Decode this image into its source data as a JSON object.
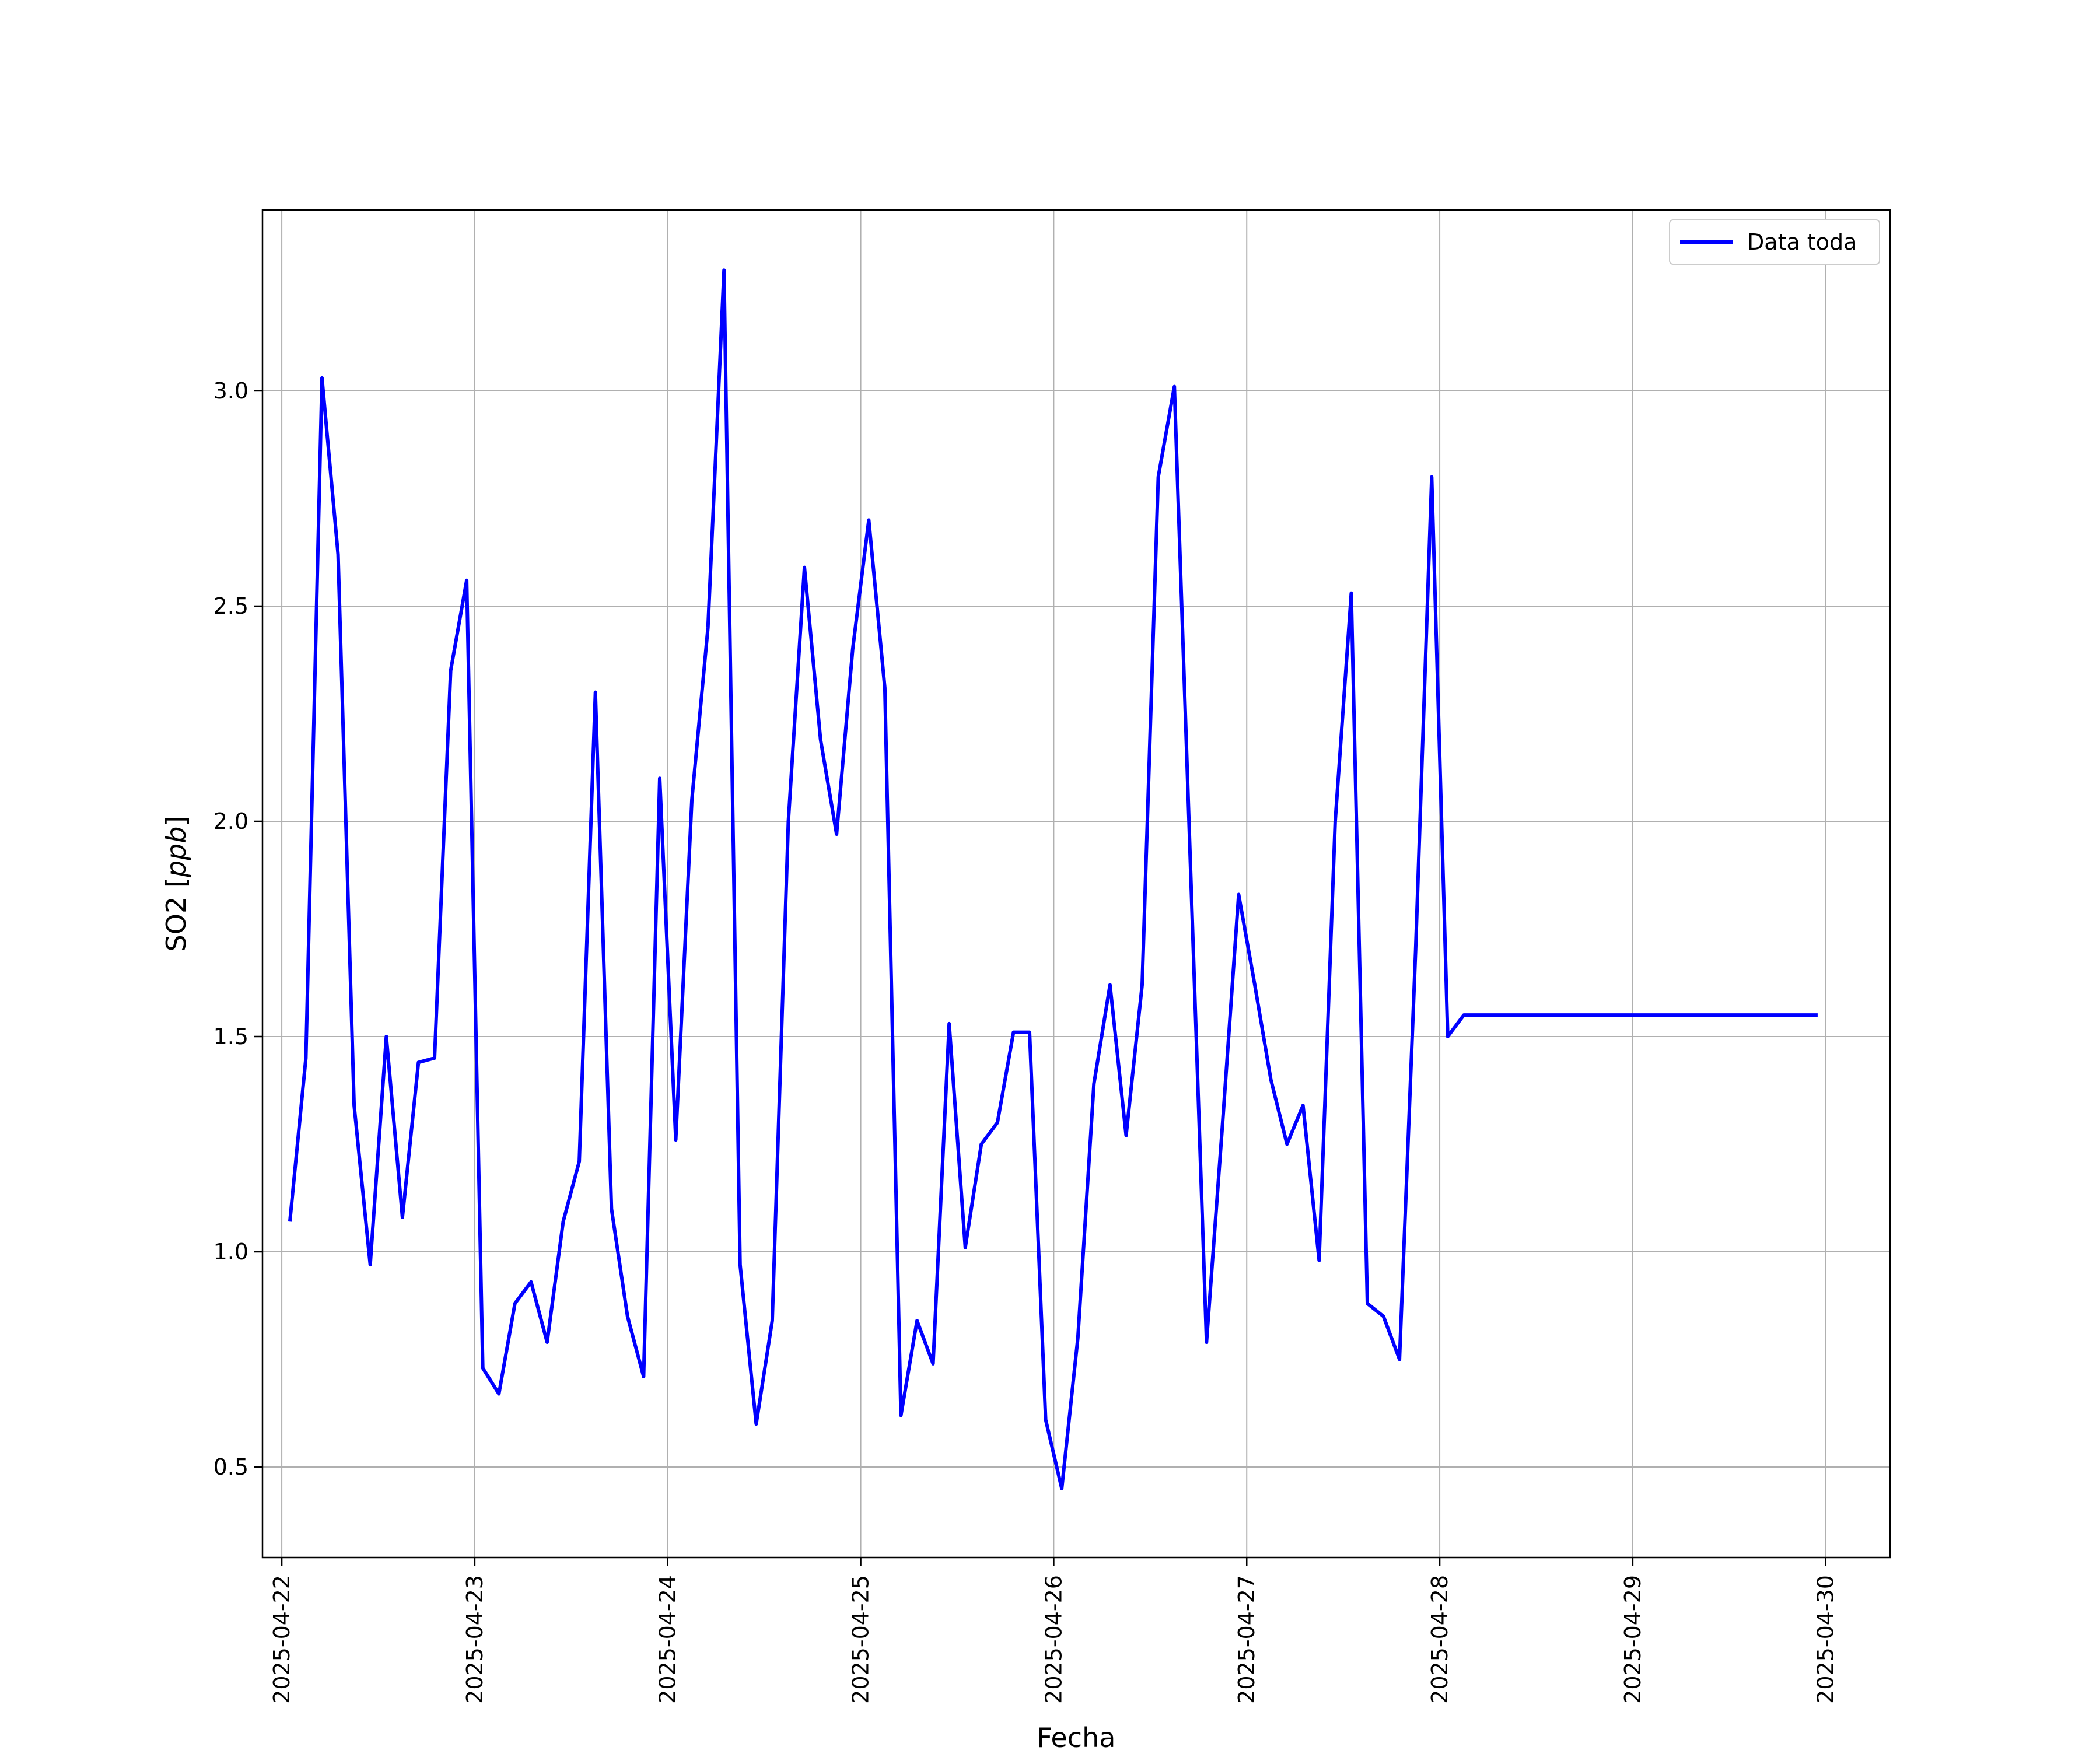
{
  "chart_data": {
    "type": "line",
    "title": "",
    "xlabel": "Fecha",
    "ylabel_main": "SO2 [",
    "ylabel_unit": "ppb",
    "ylabel_end": "]",
    "xlim": [
      "2025-04-21T21:36",
      "2025-04-30T08:00"
    ],
    "ylim": [
      0.29,
      3.42
    ],
    "x_ticks": [
      "2025-04-22",
      "2025-04-23",
      "2025-04-24",
      "2025-04-25",
      "2025-04-26",
      "2025-04-27",
      "2025-04-28",
      "2025-04-29",
      "2025-04-30"
    ],
    "y_ticks": [
      "0.5",
      "1.0",
      "1.5",
      "2.0",
      "2.5",
      "3.0"
    ],
    "grid": true,
    "legend": "top-right",
    "color": "#0000ff",
    "series": [
      {
        "name": "Data toda",
        "x": [
          "2025-04-22T01:00",
          "2025-04-22T03:00",
          "2025-04-22T05:00",
          "2025-04-22T07:00",
          "2025-04-22T09:00",
          "2025-04-22T11:00",
          "2025-04-22T13:00",
          "2025-04-22T15:00",
          "2025-04-22T17:00",
          "2025-04-22T19:00",
          "2025-04-22T21:00",
          "2025-04-22T23:00",
          "2025-04-23T01:00",
          "2025-04-23T03:00",
          "2025-04-23T05:00",
          "2025-04-23T07:00",
          "2025-04-23T09:00",
          "2025-04-23T11:00",
          "2025-04-23T13:00",
          "2025-04-23T15:00",
          "2025-04-23T17:00",
          "2025-04-23T19:00",
          "2025-04-23T21:00",
          "2025-04-23T23:00",
          "2025-04-24T01:00",
          "2025-04-24T03:00",
          "2025-04-24T05:00",
          "2025-04-24T07:00",
          "2025-04-24T09:00",
          "2025-04-24T11:00",
          "2025-04-24T13:00",
          "2025-04-24T15:00",
          "2025-04-24T17:00",
          "2025-04-24T19:00",
          "2025-04-24T21:00",
          "2025-04-24T23:00",
          "2025-04-25T01:00",
          "2025-04-25T03:00",
          "2025-04-25T05:00",
          "2025-04-25T07:00",
          "2025-04-25T09:00",
          "2025-04-25T11:00",
          "2025-04-25T13:00",
          "2025-04-25T15:00",
          "2025-04-25T17:00",
          "2025-04-25T19:00",
          "2025-04-25T21:00",
          "2025-04-25T23:00",
          "2025-04-26T01:00",
          "2025-04-26T03:00",
          "2025-04-26T05:00",
          "2025-04-26T07:00",
          "2025-04-26T09:00",
          "2025-04-26T11:00",
          "2025-04-26T13:00",
          "2025-04-26T15:00",
          "2025-04-26T17:00",
          "2025-04-26T19:00",
          "2025-04-26T21:00",
          "2025-04-26T23:00",
          "2025-04-27T01:00",
          "2025-04-27T03:00",
          "2025-04-27T05:00",
          "2025-04-27T07:00",
          "2025-04-27T09:00",
          "2025-04-27T11:00",
          "2025-04-27T13:00",
          "2025-04-27T15:00",
          "2025-04-27T17:00",
          "2025-04-27T19:00",
          "2025-04-27T21:00",
          "2025-04-27T23:00",
          "2025-04-28T01:00",
          "2025-04-28T03:00",
          "2025-04-28T05:00",
          "2025-04-28T07:00",
          "2025-04-28T09:00",
          "2025-04-28T11:00",
          "2025-04-28T13:00",
          "2025-04-28T15:00",
          "2025-04-28T17:00",
          "2025-04-28T19:00",
          "2025-04-28T21:00",
          "2025-04-28T23:00",
          "2025-04-29T01:00",
          "2025-04-29T03:00",
          "2025-04-29T05:00",
          "2025-04-29T07:00",
          "2025-04-29T09:00",
          "2025-04-29T11:00",
          "2025-04-29T13:00",
          "2025-04-29T15:00",
          "2025-04-29T17:00",
          "2025-04-29T19:00",
          "2025-04-29T21:00",
          "2025-04-29T23:00"
        ],
        "values": [
          1.07,
          1.45,
          3.03,
          2.62,
          1.34,
          0.97,
          1.5,
          1.08,
          1.44,
          1.45,
          2.35,
          2.56,
          0.73,
          0.67,
          0.88,
          0.93,
          0.79,
          1.07,
          1.21,
          2.3,
          1.1,
          0.85,
          0.71,
          2.1,
          1.26,
          2.05,
          2.45,
          3.28,
          0.97,
          0.6,
          0.84,
          2.0,
          2.59,
          2.19,
          1.97,
          2.4,
          2.7,
          2.31,
          0.62,
          0.84,
          0.74,
          1.53,
          1.01,
          1.25,
          1.3,
          1.51,
          1.51,
          0.61,
          0.45,
          0.8,
          1.39,
          1.62,
          1.27,
          1.62,
          2.8,
          3.01,
          1.9,
          0.79,
          1.3,
          1.83,
          1.62,
          1.4,
          1.25,
          1.34,
          0.98,
          2.0,
          2.53,
          0.88,
          0.85,
          0.75,
          1.7,
          2.8,
          1.5,
          1.55,
          1.55,
          1.55,
          1.55,
          1.55,
          1.55,
          1.55,
          1.55,
          1.55,
          1.55,
          1.55,
          1.55,
          1.55,
          1.55,
          1.55,
          1.55,
          1.55,
          1.55,
          1.55,
          1.55,
          1.55,
          1.55,
          1.55
        ]
      }
    ]
  }
}
